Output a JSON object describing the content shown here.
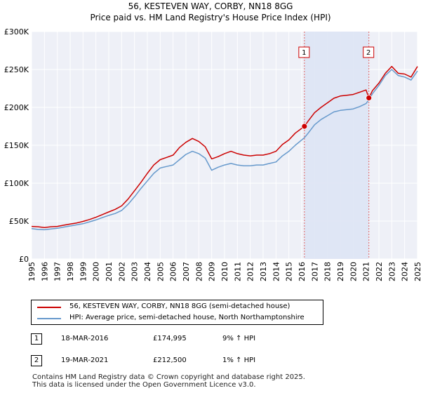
{
  "title_line1": "56, KESTEVEN WAY, CORBY, NN18 8GG",
  "title_line2": "Price paid vs. HM Land Registry's House Price Index (HPI)",
  "chart_data": {
    "type": "line",
    "x_range": [
      1995.0,
      2025.0
    ],
    "ylim": [
      0,
      300000
    ],
    "y_ticks": [
      0,
      50000,
      100000,
      150000,
      200000,
      250000,
      300000
    ],
    "y_tick_labels": [
      "£0",
      "£50K",
      "£100K",
      "£150K",
      "£200K",
      "£250K",
      "£300K"
    ],
    "x_ticks": [
      1995,
      1996,
      1997,
      1998,
      1999,
      2000,
      2001,
      2002,
      2003,
      2004,
      2005,
      2006,
      2007,
      2008,
      2009,
      2010,
      2011,
      2012,
      2013,
      2014,
      2015,
      2016,
      2017,
      2018,
      2019,
      2020,
      2021,
      2022,
      2023,
      2024,
      2025
    ],
    "grid": true,
    "series": [
      {
        "name": "56, KESTEVEN WAY, CORBY, NN18 8GG (semi-detached house)",
        "color": "#cc0000",
        "points": [
          [
            1995.0,
            43000
          ],
          [
            1995.5,
            42500
          ],
          [
            1996.0,
            41500
          ],
          [
            1996.5,
            42500
          ],
          [
            1997.0,
            43000
          ],
          [
            1997.5,
            44500
          ],
          [
            1998.0,
            46000
          ],
          [
            1998.5,
            47500
          ],
          [
            1999.0,
            49500
          ],
          [
            1999.5,
            52000
          ],
          [
            2000.0,
            55000
          ],
          [
            2000.5,
            58500
          ],
          [
            2001.0,
            62000
          ],
          [
            2001.5,
            65500
          ],
          [
            2002.0,
            70000
          ],
          [
            2002.5,
            79000
          ],
          [
            2003.0,
            90000
          ],
          [
            2003.5,
            101000
          ],
          [
            2004.0,
            113000
          ],
          [
            2004.5,
            124000
          ],
          [
            2005.0,
            131000
          ],
          [
            2005.5,
            134000
          ],
          [
            2006.0,
            137000
          ],
          [
            2006.5,
            147000
          ],
          [
            2007.0,
            154000
          ],
          [
            2007.5,
            159000
          ],
          [
            2008.0,
            155000
          ],
          [
            2008.5,
            148000
          ],
          [
            2009.0,
            132000
          ],
          [
            2009.5,
            135000
          ],
          [
            2010.0,
            139000
          ],
          [
            2010.5,
            142000
          ],
          [
            2011.0,
            139000
          ],
          [
            2011.5,
            137000
          ],
          [
            2012.0,
            136000
          ],
          [
            2012.5,
            137000
          ],
          [
            2013.0,
            137000
          ],
          [
            2013.5,
            139000
          ],
          [
            2014.0,
            142000
          ],
          [
            2014.5,
            151000
          ],
          [
            2015.0,
            157000
          ],
          [
            2015.5,
            166000
          ],
          [
            2016.21,
            174995
          ],
          [
            2016.5,
            182000
          ],
          [
            2017.0,
            193000
          ],
          [
            2017.5,
            200000
          ],
          [
            2018.0,
            206000
          ],
          [
            2018.5,
            212000
          ],
          [
            2019.0,
            215000
          ],
          [
            2019.5,
            216000
          ],
          [
            2020.0,
            217000
          ],
          [
            2020.5,
            220000
          ],
          [
            2021.0,
            223000
          ],
          [
            2021.22,
            212500
          ],
          [
            2021.5,
            222000
          ],
          [
            2022.0,
            232000
          ],
          [
            2022.5,
            245000
          ],
          [
            2023.0,
            254000
          ],
          [
            2023.5,
            245000
          ],
          [
            2024.0,
            244000
          ],
          [
            2024.5,
            240000
          ],
          [
            2025.0,
            254000
          ]
        ]
      },
      {
        "name": "HPI: Average price, semi-detached house, North Northamptonshire",
        "color": "#6699cc",
        "points": [
          [
            1995.0,
            40000
          ],
          [
            1995.5,
            39000
          ],
          [
            1996.0,
            38500
          ],
          [
            1996.5,
            39500
          ],
          [
            1997.0,
            40500
          ],
          [
            1997.5,
            42000
          ],
          [
            1998.0,
            43500
          ],
          [
            1998.5,
            45000
          ],
          [
            1999.0,
            46500
          ],
          [
            1999.5,
            49000
          ],
          [
            2000.0,
            51500
          ],
          [
            2000.5,
            54500
          ],
          [
            2001.0,
            57500
          ],
          [
            2001.5,
            60000
          ],
          [
            2002.0,
            64000
          ],
          [
            2002.5,
            72000
          ],
          [
            2003.0,
            82000
          ],
          [
            2003.5,
            93000
          ],
          [
            2004.0,
            103000
          ],
          [
            2004.5,
            113000
          ],
          [
            2005.0,
            120000
          ],
          [
            2005.5,
            122000
          ],
          [
            2006.0,
            124000
          ],
          [
            2006.5,
            131000
          ],
          [
            2007.0,
            138000
          ],
          [
            2007.5,
            142000
          ],
          [
            2008.0,
            139000
          ],
          [
            2008.5,
            133000
          ],
          [
            2009.0,
            117000
          ],
          [
            2009.5,
            121000
          ],
          [
            2010.0,
            124000
          ],
          [
            2010.5,
            126000
          ],
          [
            2011.0,
            124000
          ],
          [
            2011.5,
            123000
          ],
          [
            2012.0,
            123000
          ],
          [
            2012.5,
            124000
          ],
          [
            2013.0,
            124000
          ],
          [
            2013.5,
            126000
          ],
          [
            2014.0,
            128000
          ],
          [
            2014.5,
            136000
          ],
          [
            2015.0,
            142000
          ],
          [
            2015.5,
            150000
          ],
          [
            2016.21,
            160000
          ],
          [
            2016.5,
            166000
          ],
          [
            2017.0,
            177000
          ],
          [
            2017.5,
            184000
          ],
          [
            2018.0,
            189000
          ],
          [
            2018.5,
            194000
          ],
          [
            2019.0,
            196000
          ],
          [
            2019.5,
            197000
          ],
          [
            2020.0,
            198000
          ],
          [
            2020.5,
            201000
          ],
          [
            2021.0,
            205000
          ],
          [
            2021.22,
            210000
          ],
          [
            2021.5,
            218000
          ],
          [
            2022.0,
            229000
          ],
          [
            2022.5,
            242000
          ],
          [
            2023.0,
            250000
          ],
          [
            2023.5,
            242000
          ],
          [
            2024.0,
            240000
          ],
          [
            2024.5,
            236000
          ],
          [
            2025.0,
            248000
          ]
        ]
      }
    ],
    "markers": [
      {
        "label": "1",
        "x": 2016.21,
        "y": 174995
      },
      {
        "label": "2",
        "x": 2021.22,
        "y": 212500
      }
    ],
    "shaded_span": [
      2016.21,
      2021.22
    ]
  },
  "legend": {
    "items": [
      {
        "label": "56, KESTEVEN WAY, CORBY, NN18 8GG (semi-detached house)",
        "color": "#cc0000"
      },
      {
        "label": "HPI: Average price, semi-detached house, North Northamptonshire",
        "color": "#6699cc"
      }
    ]
  },
  "transactions": [
    {
      "num": "1",
      "date": "18-MAR-2016",
      "price": "£174,995",
      "hpi": "9% ↑ HPI"
    },
    {
      "num": "2",
      "date": "19-MAR-2021",
      "price": "£212,500",
      "hpi": "1% ↑ HPI"
    }
  ],
  "footer": {
    "line1": "Contains HM Land Registry data © Crown copyright and database right 2025.",
    "line2": "This data is licensed under the Open Government Licence v3.0."
  }
}
